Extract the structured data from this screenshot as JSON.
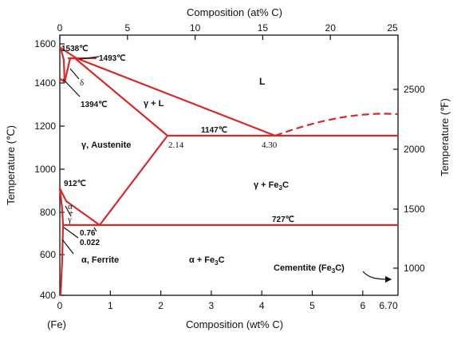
{
  "colors": {
    "phase_line": "#d42a2a",
    "axis": "#111111",
    "background": "#ffffff"
  },
  "axes": {
    "top_title": "Composition (at% C)",
    "bottom_title": "Composition (wt% C)",
    "left_title": "Temperature (℃)",
    "right_title": "Temperature (℉)",
    "top_ticks": [
      "0",
      "5",
      "10",
      "15",
      "20",
      "25"
    ],
    "bottom_ticks": [
      "0",
      "1",
      "2",
      "3",
      "4",
      "5",
      "6",
      "6.70"
    ],
    "left_ticks": [
      "400",
      "600",
      "800",
      "1000",
      "1200",
      "1400",
      "1600"
    ],
    "right_ticks": [
      "1000",
      "1500",
      "2000",
      "2500"
    ],
    "fe_label": "(Fe)"
  },
  "labels": {
    "t1538": "1538℃",
    "t1493": "1493℃",
    "delta": "δ",
    "t1394": "1394℃",
    "liquid": "L",
    "gamma_l": "γ + L",
    "t1147": "1147℃",
    "austenite": "γ, Austenite",
    "c214": "2.14",
    "c430": "4.30",
    "t912": "912℃",
    "gamma_fe3c": "γ + Fe",
    "alpha_gamma_a": "α",
    "alpha_gamma_plus": "+",
    "alpha_gamma_g": "γ",
    "c076": "0.76",
    "c0022": "0.022",
    "t727": "727℃",
    "ferrite": "α, Ferrite",
    "alpha_fe3c": "α + Fe",
    "cementite": "Cementite  (Fe",
    "cementite_end": "C)",
    "sub3": "3",
    "c_suffix": "C"
  }
}
